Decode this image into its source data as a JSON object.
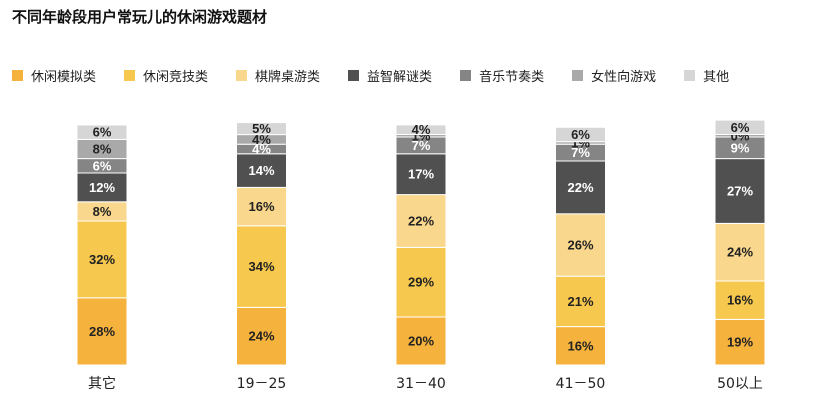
{
  "chart_data": {
    "type": "bar",
    "stacked": true,
    "title": "不同年龄段用户常玩儿的休闲游戏题材",
    "categories": [
      "其它",
      "19－25",
      "31－40",
      "41－50",
      "50以上"
    ],
    "series": [
      {
        "name": "休闲模拟类",
        "color": "#f5b23c",
        "values": [
          28,
          24,
          20,
          16,
          19
        ]
      },
      {
        "name": "休闲竞技类",
        "color": "#f7c84e",
        "values": [
          32,
          34,
          29,
          21,
          16
        ]
      },
      {
        "name": "棋牌桌游类",
        "color": "#f9d78d",
        "values": [
          8,
          16,
          22,
          26,
          24
        ]
      },
      {
        "name": "益智解谜类",
        "color": "#505050",
        "values": [
          12,
          14,
          17,
          22,
          27
        ]
      },
      {
        "name": "音乐节奏类",
        "color": "#858585",
        "values": [
          6,
          4,
          7,
          7,
          9
        ]
      },
      {
        "name": "女性向游戏",
        "color": "#a9a9a9",
        "values": [
          8,
          4,
          1,
          1,
          0
        ]
      },
      {
        "name": "其他",
        "color": "#d6d6d6",
        "values": [
          6,
          5,
          4,
          6,
          6
        ]
      }
    ],
    "label_colors": [
      "#222222",
      "#222222",
      "#222222",
      "#ffffff",
      "#ffffff",
      "#222222",
      "#222222"
    ],
    "value_suffix": "%",
    "legend_position": "top",
    "grid": false
  }
}
